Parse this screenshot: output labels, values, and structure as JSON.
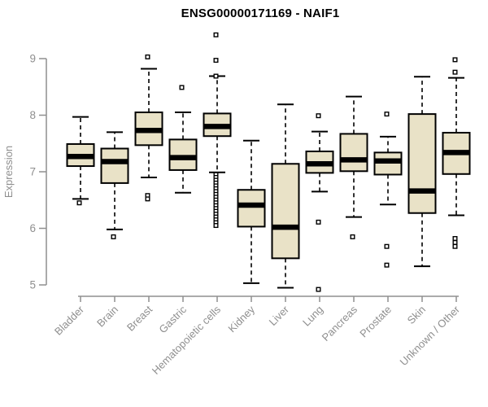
{
  "chart_data": {
    "type": "boxplot",
    "title": "ENSG00000171169 - NAIF1",
    "xlabel": "",
    "ylabel": "Expression",
    "ylim": [
      5,
      9
    ],
    "yticks": [
      5,
      6,
      7,
      8,
      9
    ],
    "grid": false,
    "legend": "none",
    "box_fill_color": "#E9E2C7",
    "box_line_color": "#000000",
    "axis_color": "#8F8F8F",
    "title_color": "#000000",
    "categories": [
      "Bladder",
      "Brain",
      "Breast",
      "Gastric",
      "Hematopoietic cells",
      "Kidney",
      "Liver",
      "Lung",
      "Pancreas",
      "Prostate",
      "Skin",
      "Unknown / Other"
    ],
    "series": [
      {
        "name": "Bladder",
        "low": 6.52,
        "q1": 7.1,
        "median": 7.27,
        "q3": 7.49,
        "high": 7.97,
        "outliers": [
          6.45
        ]
      },
      {
        "name": "Brain",
        "low": 5.98,
        "q1": 6.8,
        "median": 7.18,
        "q3": 7.41,
        "high": 7.7,
        "outliers": [
          5.85
        ]
      },
      {
        "name": "Breast",
        "low": 6.9,
        "q1": 7.47,
        "median": 7.73,
        "q3": 8.05,
        "high": 8.82,
        "outliers": [
          9.03,
          6.58,
          6.52
        ]
      },
      {
        "name": "Gastric",
        "low": 6.63,
        "q1": 7.03,
        "median": 7.25,
        "q3": 7.57,
        "high": 8.05,
        "outliers": [
          8.49
        ]
      },
      {
        "name": "Hematopoietic cells",
        "low": 6.99,
        "q1": 7.63,
        "median": 7.8,
        "q3": 8.03,
        "high": 8.69,
        "outliers": [
          9.42,
          8.97,
          8.69,
          6.95,
          6.9,
          6.85,
          6.8,
          6.75,
          6.7,
          6.65,
          6.6,
          6.55,
          6.5,
          6.45,
          6.4,
          6.35,
          6.3,
          6.25,
          6.2,
          6.15,
          6.1,
          6.05
        ]
      },
      {
        "name": "Kidney",
        "low": 5.03,
        "q1": 6.03,
        "median": 6.41,
        "q3": 6.68,
        "high": 7.55,
        "outliers": []
      },
      {
        "name": "Liver",
        "low": 4.95,
        "q1": 5.47,
        "median": 6.02,
        "q3": 7.14,
        "high": 8.19,
        "outliers": []
      },
      {
        "name": "Lung",
        "low": 6.65,
        "q1": 6.98,
        "median": 7.14,
        "q3": 7.36,
        "high": 7.71,
        "outliers": [
          7.99,
          6.11,
          4.92
        ]
      },
      {
        "name": "Pancreas",
        "low": 6.2,
        "q1": 7.01,
        "median": 7.21,
        "q3": 7.67,
        "high": 8.33,
        "outliers": [
          5.85
        ]
      },
      {
        "name": "Prostate",
        "low": 6.42,
        "q1": 6.95,
        "median": 7.19,
        "q3": 7.34,
        "high": 7.62,
        "outliers": [
          8.02,
          5.68,
          5.35
        ]
      },
      {
        "name": "Skin",
        "low": 5.33,
        "q1": 6.27,
        "median": 6.66,
        "q3": 8.02,
        "high": 8.68,
        "outliers": []
      },
      {
        "name": "Unknown / Other",
        "low": 6.23,
        "q1": 6.96,
        "median": 7.34,
        "q3": 7.69,
        "high": 8.66,
        "outliers": [
          8.98,
          8.76,
          5.82,
          5.75,
          5.68
        ]
      }
    ]
  }
}
